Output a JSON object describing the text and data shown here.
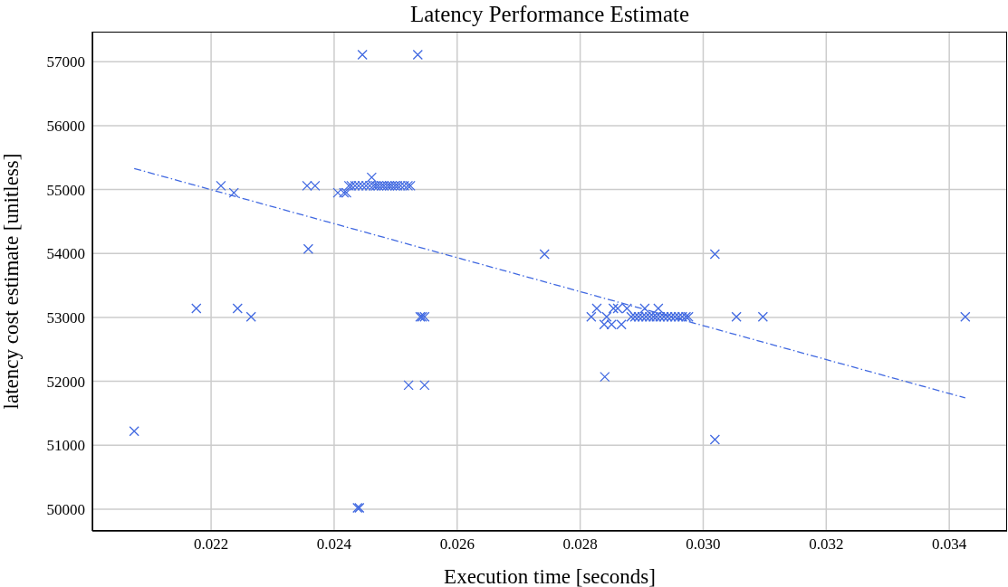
{
  "chart_data": {
    "type": "scatter",
    "title": "Latency Performance Estimate",
    "xlabel": "Execution time [seconds]",
    "ylabel": "latency cost estimate [unitless]",
    "xlim": [
      0.02007,
      0.03494
    ],
    "ylim": [
      49660,
      57470
    ],
    "xticks": [
      0.022,
      0.024,
      0.026,
      0.028,
      {
        "value": 0.03,
        "label": "0.030"
      },
      0.032,
      0.034
    ],
    "yticks": [
      50000,
      51000,
      52000,
      53000,
      54000,
      55000,
      56000,
      57000
    ],
    "grid": true,
    "marker": "cross",
    "series": [
      {
        "color": "#4169e1",
        "x": [
          0.02075,
          0.02176,
          0.02216,
          0.02237,
          0.02243,
          0.02265,
          0.02356,
          0.02358,
          0.02369,
          0.02406,
          0.02416,
          0.0242,
          0.02424,
          0.02428,
          0.02434,
          0.0244,
          0.02446,
          0.02452,
          0.02458,
          0.02461,
          0.02464,
          0.02468,
          0.02472,
          0.02477,
          0.02481,
          0.02486,
          0.0249,
          0.02494,
          0.02499,
          0.02503,
          0.02508,
          0.02514,
          0.0252,
          0.02524,
          0.02446,
          0.02536,
          0.02438,
          0.02441,
          0.02521,
          0.02547,
          0.0254,
          0.02543,
          0.02547,
          0.02742,
          0.0284,
          0.03019,
          0.03019,
          0.03054,
          0.03097,
          0.03426,
          0.02818,
          0.02827,
          0.02843,
          0.02839,
          0.02851,
          0.02867,
          0.02854,
          0.02861,
          0.02876,
          0.02905,
          0.02927,
          0.02883,
          0.02889,
          0.02895,
          0.02901,
          0.02907,
          0.02913,
          0.02919,
          0.02924,
          0.0293,
          0.02936,
          0.02942,
          0.02948,
          0.02954,
          0.0296,
          0.02966,
          0.02972,
          0.02976
        ],
        "values": [
          51220,
          53140,
          55060,
          54950,
          53140,
          53010,
          55060,
          54070,
          55060,
          54950,
          54950,
          54950,
          55060,
          55060,
          55060,
          55060,
          55060,
          55060,
          55060,
          55190,
          55060,
          55060,
          55060,
          55060,
          55060,
          55060,
          55060,
          55060,
          55060,
          55060,
          55060,
          55060,
          55060,
          55060,
          57110,
          57110,
          50020,
          50020,
          51940,
          51940,
          53010,
          53010,
          53010,
          53990,
          52070,
          53990,
          51090,
          53010,
          53010,
          53010,
          53010,
          53140,
          53010,
          52890,
          52890,
          52890,
          53140,
          53140,
          53140,
          53140,
          53140,
          53010,
          53010,
          53010,
          53010,
          53010,
          53010,
          53010,
          53010,
          53010,
          53010,
          53010,
          53010,
          53010,
          53010,
          53010,
          53010,
          53010
        ]
      },
      {
        "type": "line",
        "color": "#4169e1",
        "line_style": "dashed",
        "marker": "none",
        "x": [
          0.02075,
          0.03426
        ],
        "values": [
          55330,
          51740
        ]
      }
    ]
  }
}
